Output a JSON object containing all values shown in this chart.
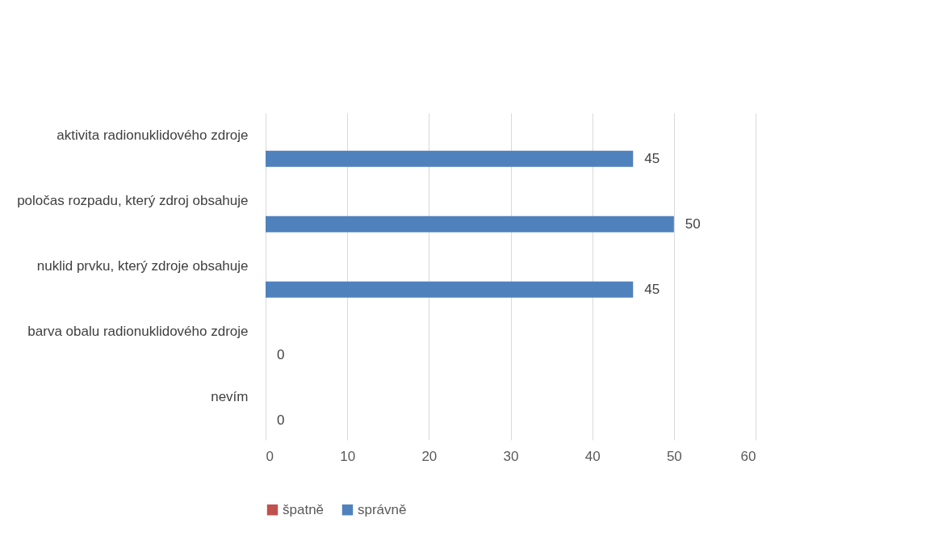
{
  "chart_data": {
    "type": "bar",
    "orientation": "horizontal",
    "categories": [
      "aktivita radionuklidového zdroje",
      "poločas rozpadu, který zdroj obsahuje",
      "nuklid prvku, který zdroje obsahuje",
      "barva obalu radionuklidového zdroje",
      "nevím"
    ],
    "series": [
      {
        "name": "špatně",
        "color": "#c0504d",
        "values": [
          null,
          null,
          null,
          null,
          null
        ]
      },
      {
        "name": "správně",
        "color": "#4f81bd",
        "values": [
          45,
          50,
          45,
          0,
          0
        ]
      }
    ],
    "xlim": [
      0,
      60
    ],
    "xticks": [
      0,
      10,
      20,
      30,
      40,
      50,
      60
    ],
    "grid": "x",
    "legend": "bottom",
    "data_labels": true
  }
}
